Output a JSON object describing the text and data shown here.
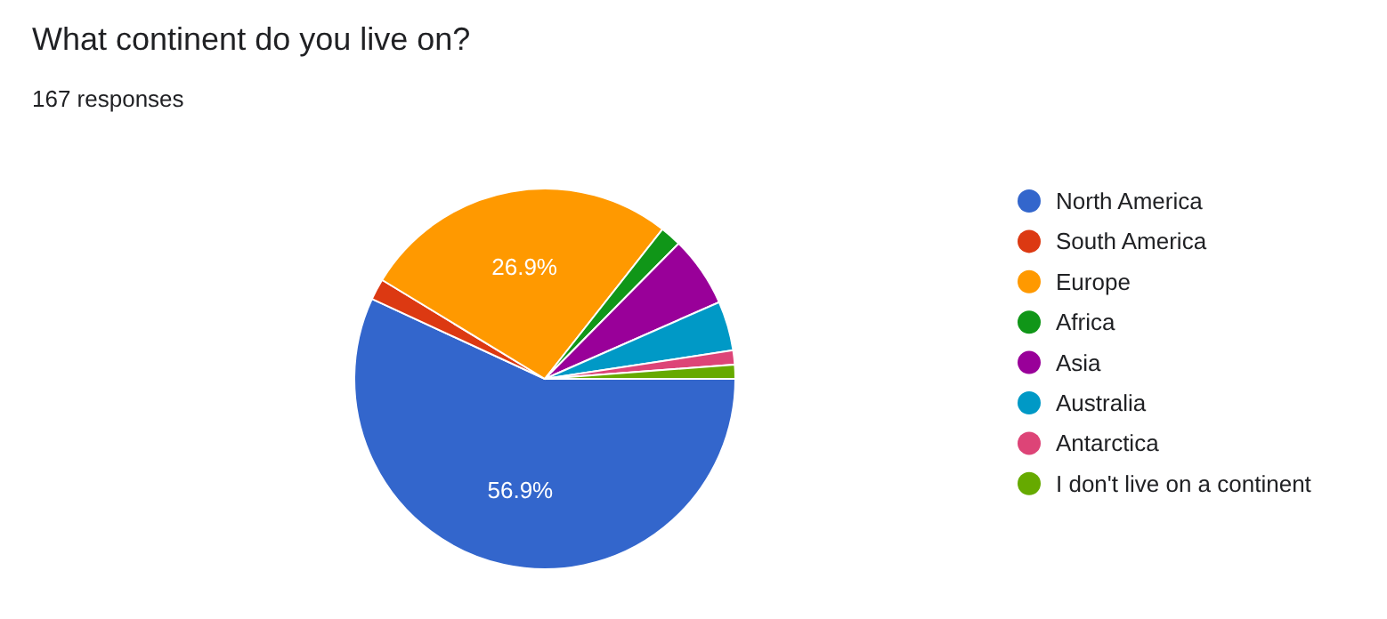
{
  "chart_data": {
    "type": "pie",
    "title": "What continent do you live on?",
    "subtitle": "167 responses",
    "categories": [
      "North America",
      "South America",
      "Europe",
      "Africa",
      "Asia",
      "Australia",
      "Antarctica",
      "I don't live on a continent"
    ],
    "values": [
      56.9,
      1.8,
      26.9,
      1.8,
      6.0,
      4.2,
      1.2,
      1.2
    ],
    "colors": [
      "#3366cc",
      "#dc3912",
      "#ff9900",
      "#109618",
      "#990099",
      "#0099c6",
      "#dd4477",
      "#66aa00"
    ],
    "value_labels": [
      "56.9%",
      null,
      "26.9%",
      null,
      null,
      null,
      null,
      null
    ],
    "legend": "right"
  }
}
